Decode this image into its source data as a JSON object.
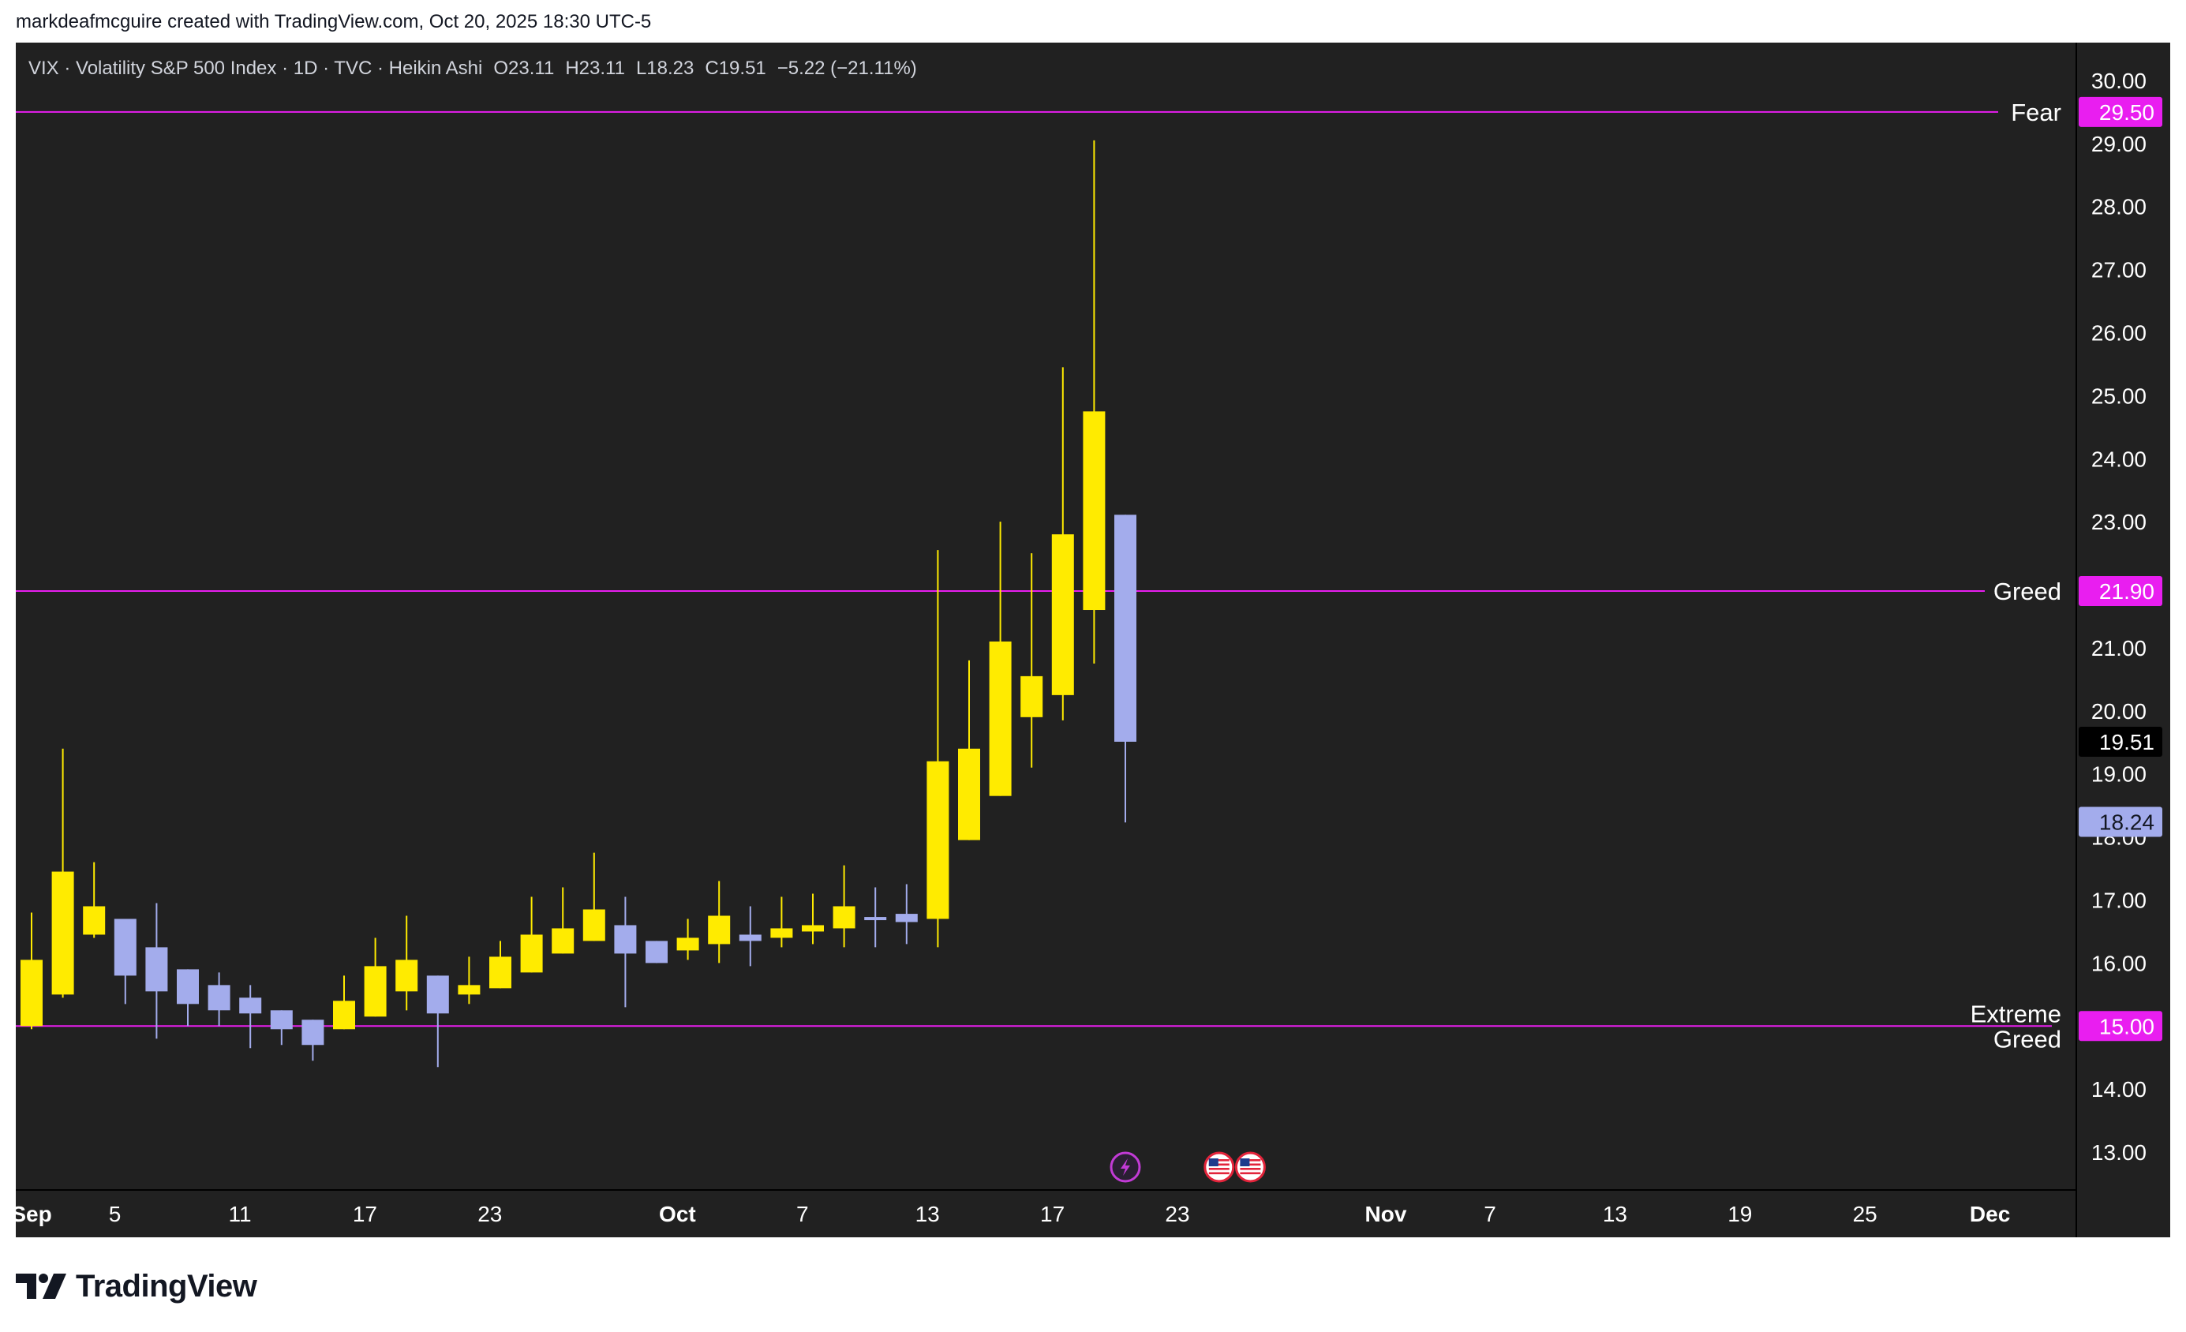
{
  "header": {
    "credit": "markdeafmcguire created with TradingView.com, Oct 20, 2025 18:30 UTC-5"
  },
  "brand": {
    "name": "TradingView",
    "logo_icon": "tradingview-logo-icon"
  },
  "colors": {
    "up": "#ffeb00",
    "down": "#a3acec",
    "level": "#e91ef0",
    "background": "#212121"
  },
  "chart_data": {
    "type": "candlestick",
    "style": "Heikin Ashi",
    "legend": {
      "symbol": "VIX · Volatility S&P 500 Index · 1D · TVC · Heikin Ashi",
      "o_label": "O",
      "o": "23.11",
      "h_label": "H",
      "h": "23.11",
      "l_label": "L",
      "l": "18.23",
      "c_label": "C",
      "c": "19.51",
      "change": "−5.22 (−21.11%)"
    },
    "ylim": [
      12.4,
      30.6
    ],
    "y_ticks": [
      "13.00",
      "14.00",
      "15.00",
      "16.00",
      "17.00",
      "18.00",
      "19.00",
      "20.00",
      "21.00",
      "22.00",
      "23.00",
      "24.00",
      "25.00",
      "26.00",
      "27.00",
      "28.00",
      "29.00",
      "30.00"
    ],
    "x_ticks": [
      {
        "label": "Sep",
        "day": 0,
        "bold": true
      },
      {
        "label": "5",
        "day": 4
      },
      {
        "label": "11",
        "day": 10
      },
      {
        "label": "17",
        "day": 16
      },
      {
        "label": "23",
        "day": 22
      },
      {
        "label": "Oct",
        "day": 31,
        "bold": true
      },
      {
        "label": "7",
        "day": 37
      },
      {
        "label": "13",
        "day": 43
      },
      {
        "label": "17",
        "day": 49
      },
      {
        "label": "23",
        "day": 55
      },
      {
        "label": "Nov",
        "day": 65,
        "bold": true
      },
      {
        "label": "7",
        "day": 70
      },
      {
        "label": "13",
        "day": 76
      },
      {
        "label": "19",
        "day": 82
      },
      {
        "label": "25",
        "day": 88
      },
      {
        "label": "Dec",
        "day": 94,
        "bold": true
      }
    ],
    "x_range_days": [
      0,
      98
    ],
    "levels": [
      {
        "name": "Fear",
        "value": 29.5,
        "label": "29.50"
      },
      {
        "name": "Greed",
        "value": 21.9,
        "label": "21.90"
      },
      {
        "name": "Extreme Greed",
        "value": 15.0,
        "label": "15.00"
      }
    ],
    "price_tags": [
      {
        "label": "19.51",
        "value": 19.51,
        "style": "last"
      },
      {
        "label": "18.24",
        "value": 18.24,
        "style": "low"
      }
    ],
    "candles": [
      {
        "date": "2025-09-02",
        "o": 15.0,
        "h": 16.8,
        "l": 14.95,
        "c": 16.05
      },
      {
        "date": "2025-09-03",
        "o": 15.5,
        "h": 19.4,
        "l": 15.45,
        "c": 17.45
      },
      {
        "date": "2025-09-04",
        "o": 16.45,
        "h": 17.6,
        "l": 16.4,
        "c": 16.9
      },
      {
        "date": "2025-09-05",
        "o": 16.7,
        "h": 16.7,
        "l": 15.35,
        "c": 15.8
      },
      {
        "date": "2025-09-08",
        "o": 16.25,
        "h": 16.95,
        "l": 14.8,
        "c": 15.55
      },
      {
        "date": "2025-09-09",
        "o": 15.9,
        "h": 15.9,
        "l": 15.0,
        "c": 15.35
      },
      {
        "date": "2025-09-10",
        "o": 15.65,
        "h": 15.85,
        "l": 15.0,
        "c": 15.25
      },
      {
        "date": "2025-09-11",
        "o": 15.45,
        "h": 15.65,
        "l": 14.65,
        "c": 15.2
      },
      {
        "date": "2025-09-12",
        "o": 15.25,
        "h": 15.25,
        "l": 14.7,
        "c": 14.95
      },
      {
        "date": "2025-09-15",
        "o": 15.1,
        "h": 15.1,
        "l": 14.45,
        "c": 14.7
      },
      {
        "date": "2025-09-16",
        "o": 14.95,
        "h": 15.8,
        "l": 14.95,
        "c": 15.4
      },
      {
        "date": "2025-09-17",
        "o": 15.15,
        "h": 16.4,
        "l": 15.15,
        "c": 15.95
      },
      {
        "date": "2025-09-18",
        "o": 15.55,
        "h": 16.75,
        "l": 15.25,
        "c": 16.05
      },
      {
        "date": "2025-09-19",
        "o": 15.8,
        "h": 15.8,
        "l": 14.35,
        "c": 15.2
      },
      {
        "date": "2025-09-22",
        "o": 15.5,
        "h": 16.1,
        "l": 15.35,
        "c": 15.65
      },
      {
        "date": "2025-09-23",
        "o": 15.6,
        "h": 16.35,
        "l": 15.6,
        "c": 16.1
      },
      {
        "date": "2025-09-24",
        "o": 15.85,
        "h": 17.05,
        "l": 15.85,
        "c": 16.45
      },
      {
        "date": "2025-09-25",
        "o": 16.15,
        "h": 17.2,
        "l": 16.15,
        "c": 16.55
      },
      {
        "date": "2025-09-26",
        "o": 16.35,
        "h": 17.75,
        "l": 16.35,
        "c": 16.85
      },
      {
        "date": "2025-09-29",
        "o": 16.6,
        "h": 17.05,
        "l": 15.3,
        "c": 16.15
      },
      {
        "date": "2025-09-30",
        "o": 16.35,
        "h": 16.35,
        "l": 16.0,
        "c": 16.0
      },
      {
        "date": "2025-10-01",
        "o": 16.2,
        "h": 16.7,
        "l": 16.05,
        "c": 16.4
      },
      {
        "date": "2025-10-02",
        "o": 16.3,
        "h": 17.3,
        "l": 16.0,
        "c": 16.75
      },
      {
        "date": "2025-10-03",
        "o": 16.45,
        "h": 16.9,
        "l": 15.95,
        "c": 16.35
      },
      {
        "date": "2025-10-06",
        "o": 16.4,
        "h": 17.05,
        "l": 16.25,
        "c": 16.55
      },
      {
        "date": "2025-10-07",
        "o": 16.5,
        "h": 17.1,
        "l": 16.3,
        "c": 16.6
      },
      {
        "date": "2025-10-08",
        "o": 16.55,
        "h": 17.55,
        "l": 16.25,
        "c": 16.9
      },
      {
        "date": "2025-10-09",
        "o": 16.73,
        "h": 17.2,
        "l": 16.25,
        "c": 16.68
      },
      {
        "date": "2025-10-10",
        "o": 16.78,
        "h": 17.25,
        "l": 16.3,
        "c": 16.65
      },
      {
        "date": "2025-10-13",
        "o": 16.7,
        "h": 22.55,
        "l": 16.25,
        "c": 19.2
      },
      {
        "date": "2025-10-14",
        "o": 17.95,
        "h": 20.8,
        "l": 17.95,
        "c": 19.4
      },
      {
        "date": "2025-10-15",
        "o": 18.65,
        "h": 23.0,
        "l": 18.65,
        "c": 21.1
      },
      {
        "date": "2025-10-16",
        "o": 19.9,
        "h": 22.5,
        "l": 19.1,
        "c": 20.55
      },
      {
        "date": "2025-10-17",
        "o": 20.25,
        "h": 25.45,
        "l": 19.85,
        "c": 22.8
      },
      {
        "date": "2025-10-20",
        "o": 21.6,
        "h": 29.05,
        "l": 20.75,
        "c": 24.75
      },
      {
        "date": "2025-10-21",
        "o": 23.11,
        "h": 23.11,
        "l": 18.23,
        "c": 19.51
      }
    ],
    "candle_days": [
      0,
      1,
      2,
      3,
      4,
      5,
      6,
      7,
      8,
      9,
      10,
      11,
      12,
      13,
      14,
      15,
      16,
      17,
      18,
      19,
      20,
      21,
      22,
      23,
      24,
      25,
      26,
      27,
      28,
      29,
      30,
      31,
      32,
      33,
      34,
      35
    ],
    "markers": [
      {
        "icon": "lightning-event-icon",
        "day": 35
      },
      {
        "icon": "us-flag-icon",
        "day": 38
      },
      {
        "icon": "us-flag-icon",
        "day": 39
      }
    ]
  }
}
